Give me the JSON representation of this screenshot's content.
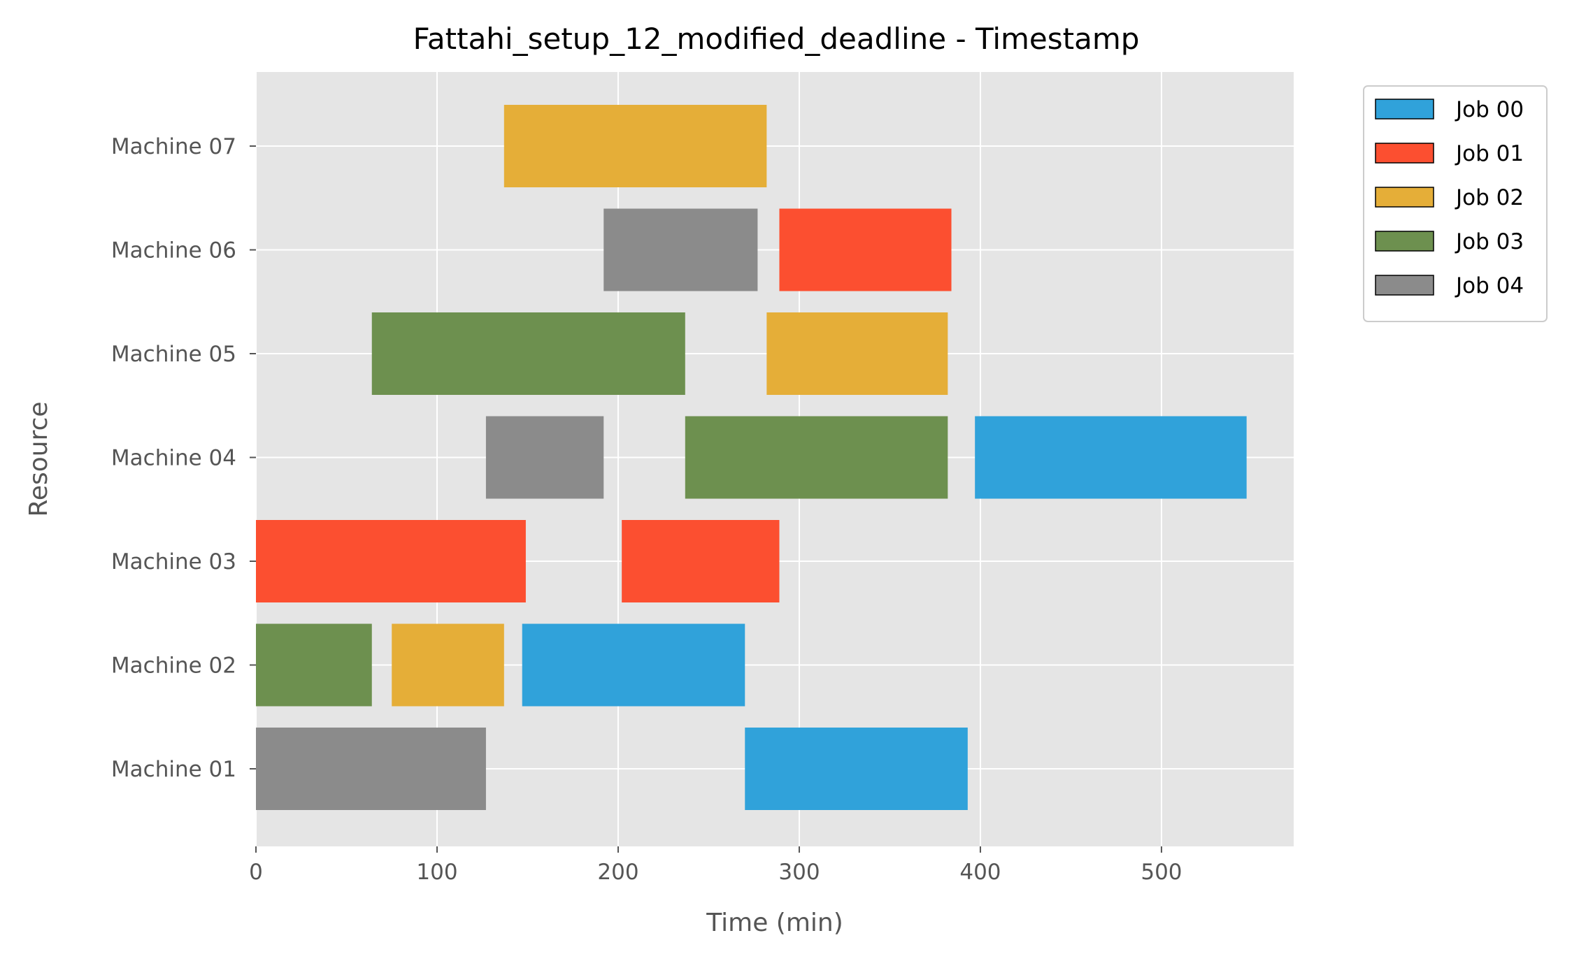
{
  "chart_data": {
    "type": "gantt",
    "title": "Fattahi_setup_12_modified_deadline - Timestamp",
    "xlabel": "Time (min)",
    "ylabel": "Resource",
    "xlim": [
      0,
      573
    ],
    "xticks": [
      0,
      100,
      200,
      300,
      400,
      500
    ],
    "grid": true,
    "legend_position": "outside-top-right",
    "resources": [
      "Machine 01",
      "Machine 02",
      "Machine 03",
      "Machine 04",
      "Machine 05",
      "Machine 06",
      "Machine 07"
    ],
    "jobs": [
      {
        "name": "Job 00",
        "color": "#30a2da"
      },
      {
        "name": "Job 01",
        "color": "#fc4f30"
      },
      {
        "name": "Job 02",
        "color": "#e5ae38"
      },
      {
        "name": "Job 03",
        "color": "#6d904f"
      },
      {
        "name": "Job 04",
        "color": "#8b8b8b"
      }
    ],
    "tasks": [
      {
        "resource": "Machine 01",
        "job": "Job 04",
        "start": 0,
        "end": 127
      },
      {
        "resource": "Machine 01",
        "job": "Job 00",
        "start": 270,
        "end": 393
      },
      {
        "resource": "Machine 02",
        "job": "Job 03",
        "start": 0,
        "end": 64
      },
      {
        "resource": "Machine 02",
        "job": "Job 02",
        "start": 75,
        "end": 137
      },
      {
        "resource": "Machine 02",
        "job": "Job 00",
        "start": 147,
        "end": 270
      },
      {
        "resource": "Machine 03",
        "job": "Job 01",
        "start": 0,
        "end": 149
      },
      {
        "resource": "Machine 03",
        "job": "Job 01",
        "start": 202,
        "end": 289
      },
      {
        "resource": "Machine 04",
        "job": "Job 04",
        "start": 127,
        "end": 192
      },
      {
        "resource": "Machine 04",
        "job": "Job 03",
        "start": 237,
        "end": 382
      },
      {
        "resource": "Machine 04",
        "job": "Job 00",
        "start": 397,
        "end": 547
      },
      {
        "resource": "Machine 05",
        "job": "Job 03",
        "start": 64,
        "end": 237
      },
      {
        "resource": "Machine 05",
        "job": "Job 02",
        "start": 282,
        "end": 382
      },
      {
        "resource": "Machine 06",
        "job": "Job 04",
        "start": 192,
        "end": 277
      },
      {
        "resource": "Machine 06",
        "job": "Job 01",
        "start": 289,
        "end": 384
      },
      {
        "resource": "Machine 07",
        "job": "Job 02",
        "start": 137,
        "end": 282
      }
    ]
  }
}
